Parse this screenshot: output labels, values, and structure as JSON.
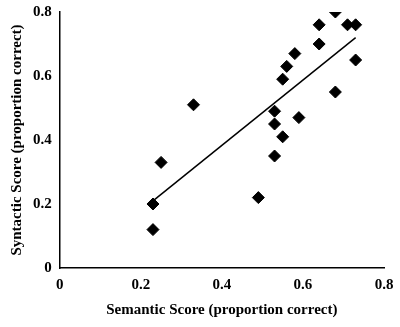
{
  "chart_data": {
    "type": "scatter",
    "x_label": "Semantic Score (proportion correct)",
    "y_label": "Syntactic Score (proportion correct)",
    "xlim": [
      0,
      0.8
    ],
    "xticks": [
      0,
      0.2,
      0.4,
      0.6,
      0.8
    ],
    "ylim": [
      0,
      0.8
    ],
    "yticks": [
      0,
      0.2,
      0.4,
      0.6,
      0.8
    ],
    "grid": false,
    "series": [
      {
        "type": "scatter",
        "marker": "diamond",
        "color": "#000000",
        "x": [
          0.23,
          0.23,
          0.25,
          0.33,
          0.49,
          0.53,
          0.53,
          0.53,
          0.55,
          0.55,
          0.56,
          0.58,
          0.59,
          0.64,
          0.64,
          0.68,
          0.68,
          0.71,
          0.73,
          0.73
        ],
        "values": [
          0.2,
          0.12,
          0.33,
          0.51,
          0.22,
          0.35,
          0.45,
          0.49,
          0.41,
          0.59,
          0.63,
          0.67,
          0.47,
          0.7,
          0.76,
          0.55,
          0.8,
          0.76,
          0.76,
          0.65
        ]
      },
      {
        "type": "line",
        "line_style": "solid",
        "color": "#000000",
        "x": [
          0.23,
          0.73
        ],
        "values": [
          0.21,
          0.72
        ]
      }
    ]
  }
}
